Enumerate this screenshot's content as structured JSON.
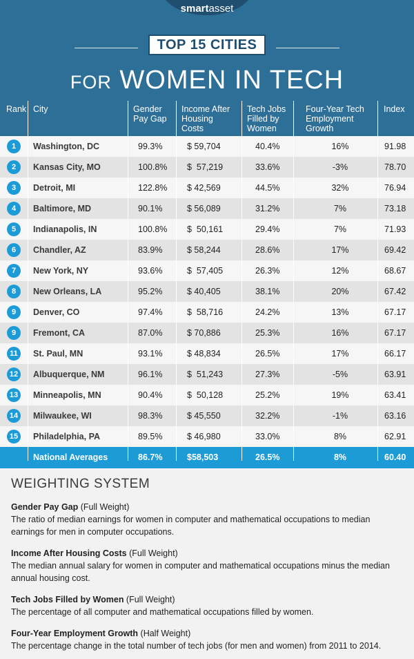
{
  "brand": {
    "smart": "smart",
    "asset": "asset"
  },
  "title_box": "TOP 15 CITIES",
  "subtitle": {
    "for": "FOR",
    "rest": "WOMEN IN TECH"
  },
  "columns": {
    "rank": "Rank",
    "city": "City",
    "gap": [
      "Gender",
      "Pay Gap"
    ],
    "income": [
      "Income After",
      "Housing",
      "Costs"
    ],
    "tech": [
      "Tech Jobs",
      "Filled by",
      "Women"
    ],
    "growth": [
      "Four-Year Tech",
      "Employment",
      "Growth"
    ],
    "index": "Index"
  },
  "rows": [
    {
      "rank": "1",
      "city": "Washington, DC",
      "gap": "99.3%",
      "income": "$ 59,704",
      "tech": "40.4%",
      "growth": "16%",
      "index": "91.98"
    },
    {
      "rank": "2",
      "city": "Kansas City, MO",
      "gap": "100.8%",
      "income": "$  57,219",
      "tech": "33.6%",
      "growth": "-3%",
      "index": "78.70"
    },
    {
      "rank": "3",
      "city": "Detroit, MI",
      "gap": "122.8%",
      "income": "$ 42,569",
      "tech": "44.5%",
      "growth": "32%",
      "index": "76.94"
    },
    {
      "rank": "4",
      "city": "Baltimore, MD",
      "gap": "90.1%",
      "income": "$ 56,089",
      "tech": "31.2%",
      "growth": "7%",
      "index": "73.18"
    },
    {
      "rank": "5",
      "city": "Indianapolis, IN",
      "gap": "100.8%",
      "income": "$  50,161",
      "tech": "29.4%",
      "growth": "7%",
      "index": "71.93"
    },
    {
      "rank": "6",
      "city": "Chandler, AZ",
      "gap": "83.9%",
      "income": "$ 58,244",
      "tech": "28.6%",
      "growth": "17%",
      "index": "69.42"
    },
    {
      "rank": "7",
      "city": "New York, NY",
      "gap": "93.6%",
      "income": "$  57,405",
      "tech": "26.3%",
      "growth": "12%",
      "index": "68.67"
    },
    {
      "rank": "8",
      "city": "New Orleans, LA",
      "gap": "95.2%",
      "income": "$ 40,405",
      "tech": "38.1%",
      "growth": "20%",
      "index": "67.42"
    },
    {
      "rank": "9",
      "city": "Denver, CO",
      "gap": "97.4%",
      "income": "$  58,716",
      "tech": "24.2%",
      "growth": "13%",
      "index": "67.17"
    },
    {
      "rank": "9",
      "city": "Fremont, CA",
      "gap": "87.0%",
      "income": "$ 70,886",
      "tech": "25.3%",
      "growth": "16%",
      "index": "67.17"
    },
    {
      "rank": "11",
      "city": "St. Paul, MN",
      "gap": "93.1%",
      "income": "$ 48,834",
      "tech": "26.5%",
      "growth": "17%",
      "index": "66.17"
    },
    {
      "rank": "12",
      "city": "Albuquerque, NM",
      "gap": "96.1%",
      "income": "$  51,243",
      "tech": "27.3%",
      "growth": "-5%",
      "index": "63.91"
    },
    {
      "rank": "13",
      "city": "Minneapolis, MN",
      "gap": "90.4%",
      "income": "$  50,128",
      "tech": "25.2%",
      "growth": "19%",
      "index": "63.41"
    },
    {
      "rank": "14",
      "city": "Milwaukee, WI",
      "gap": "98.3%",
      "income": "$ 45,550",
      "tech": "32.2%",
      "growth": "-1%",
      "index": "63.16"
    },
    {
      "rank": "15",
      "city": "Philadelphia, PA",
      "gap": "89.5%",
      "income": "$ 46,980",
      "tech": "33.0%",
      "growth": "8%",
      "index": "62.91"
    }
  ],
  "national": {
    "label": "National Averages",
    "gap": "86.7%",
    "income": "$58,503",
    "tech": "26.5%",
    "growth": "8%",
    "index": "60.40"
  },
  "weighting": {
    "title": "WEIGHTING SYSTEM",
    "items": [
      {
        "name": "Gender Pay Gap",
        "weight": " (Full Weight)",
        "desc": "The ratio of median earnings for women in computer and mathematical occupations to median earnings for men in computer occupations."
      },
      {
        "name": "Income After Housing Costs",
        "weight": " (Full Weight)",
        "desc": "The median annual salary for women in computer and mathematical occupations minus the median annual housing cost."
      },
      {
        "name": "Tech Jobs Filled by Women",
        "weight": " (Full Weight)",
        "desc": "The percentage of all computer and mathematical occupations filled by women."
      },
      {
        "name": "Four-Year Employment Growth",
        "weight": " (Half Weight)",
        "desc": "The percentage change in the total number of tech jobs (for men and women) from 2011 to 2014."
      }
    ]
  },
  "colors": {
    "header_bg": "#2e6f97",
    "accent": "#1d9bd7",
    "dark_blue": "#1f4e6e"
  }
}
